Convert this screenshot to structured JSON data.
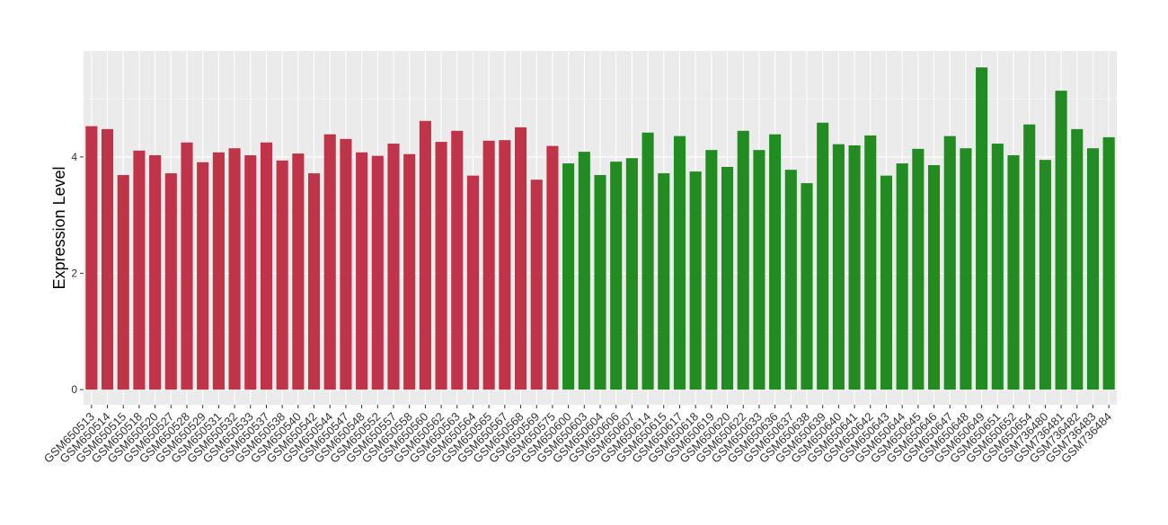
{
  "chart_data": {
    "type": "bar",
    "y_label": "Expression Level",
    "categories": [
      "GSM650513",
      "GSM650514",
      "GSM650515",
      "GSM650518",
      "GSM650520",
      "GSM650527",
      "GSM650528",
      "GSM650529",
      "GSM650531",
      "GSM650532",
      "GSM650533",
      "GSM650537",
      "GSM650538",
      "GSM650540",
      "GSM650542",
      "GSM650544",
      "GSM650547",
      "GSM650548",
      "GSM650552",
      "GSM650557",
      "GSM650558",
      "GSM650560",
      "GSM650562",
      "GSM650563",
      "GSM650564",
      "GSM650565",
      "GSM650567",
      "GSM650568",
      "GSM650569",
      "GSM650575",
      "GSM650600",
      "GSM650603",
      "GSM650604",
      "GSM650606",
      "GSM650607",
      "GSM650614",
      "GSM650615",
      "GSM650617",
      "GSM650618",
      "GSM650619",
      "GSM650620",
      "GSM650622",
      "GSM650633",
      "GSM650636",
      "GSM650637",
      "GSM650638",
      "GSM650639",
      "GSM650640",
      "GSM650641",
      "GSM650642",
      "GSM650643",
      "GSM650644",
      "GSM650645",
      "GSM650646",
      "GSM650647",
      "GSM650648",
      "GSM650649",
      "GSM650651",
      "GSM650652",
      "GSM650654",
      "GSM736480",
      "GSM736481",
      "GSM736482",
      "GSM736483",
      "GSM736484"
    ],
    "series": [
      {
        "color": "#c0344a",
        "values": [
          4.53,
          4.48,
          3.69,
          4.11,
          4.03,
          3.72,
          4.25,
          3.91,
          4.08,
          4.15,
          4.03,
          4.25,
          3.94,
          4.06,
          3.72,
          4.39,
          4.31,
          4.08,
          4.02,
          4.23,
          4.05,
          4.62,
          4.26,
          4.45,
          3.68,
          4.28,
          4.29,
          4.51,
          3.61,
          4.19,
          null,
          null,
          null,
          null,
          null,
          null,
          null,
          null,
          null,
          null,
          null,
          null,
          null,
          null,
          null,
          null,
          null,
          null,
          null,
          null,
          null,
          null,
          null,
          null,
          null,
          null,
          null,
          null,
          null,
          null,
          null,
          null,
          null,
          null,
          null
        ]
      },
      {
        "color": "#228b22",
        "values": [
          null,
          null,
          null,
          null,
          null,
          null,
          null,
          null,
          null,
          null,
          null,
          null,
          null,
          null,
          null,
          null,
          null,
          null,
          null,
          null,
          null,
          null,
          null,
          null,
          null,
          null,
          null,
          null,
          null,
          null,
          3.89,
          4.09,
          3.69,
          3.92,
          3.98,
          4.42,
          3.72,
          4.36,
          3.75,
          4.12,
          3.83,
          4.45,
          4.12,
          4.39,
          3.78,
          3.55,
          4.59,
          4.22,
          4.2,
          4.37,
          3.68,
          3.89,
          4.14,
          3.86,
          4.36,
          4.15,
          5.54,
          4.23,
          4.03,
          4.56,
          3.95,
          5.14,
          4.48,
          4.15,
          4.34
        ]
      }
    ],
    "ylim": [
      -0.26,
      5.82
    ],
    "yticks": [
      0,
      2,
      4
    ],
    "grid": true
  }
}
